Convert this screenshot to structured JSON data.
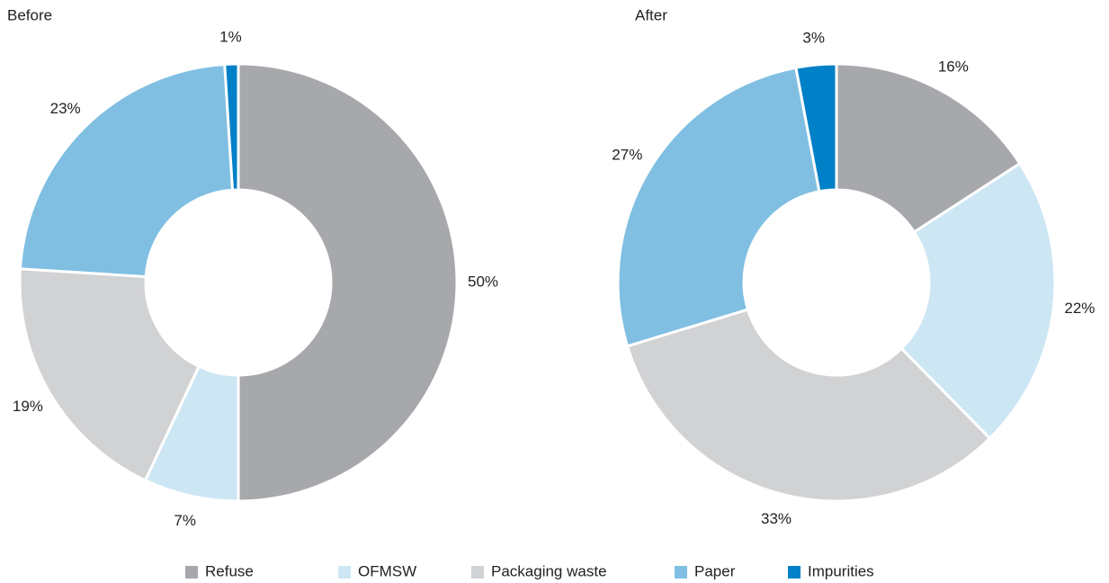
{
  "chart_data": [
    {
      "type": "pie",
      "title": "Before",
      "values": [
        50,
        7,
        19,
        23,
        1
      ],
      "value_labels": [
        "50%",
        "7%",
        "19%",
        "23%",
        "1%"
      ]
    },
    {
      "type": "pie",
      "title": "After",
      "values": [
        16,
        22,
        33,
        27,
        3
      ],
      "value_labels": [
        "16%",
        "22%",
        "33%",
        "27%",
        "3%"
      ]
    }
  ],
  "legend": {
    "categories": [
      "Refuse",
      "OFMSW",
      "Packaging waste",
      "Paper",
      "Impurities"
    ],
    "colors": [
      "#a7a8ab",
      "#cde6f4",
      "#d1d2d4",
      "#80bfe2",
      "#0080c6"
    ]
  }
}
